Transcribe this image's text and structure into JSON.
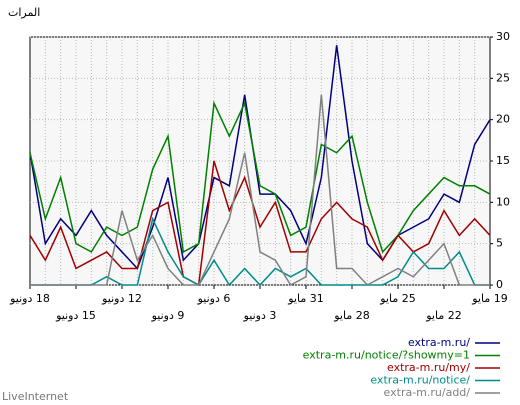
{
  "chart_data": {
    "type": "line",
    "ylabel": "المرات",
    "footer": "LiveInternet",
    "categories": [
      "18 دونيو",
      null,
      null,
      "15 دونيو",
      null,
      null,
      "12 دونيو",
      null,
      null,
      "9 دونيو",
      null,
      null,
      "6 دونيو",
      null,
      null,
      "3 دونيو",
      null,
      null,
      "31 مايو",
      null,
      null,
      "28 مايو",
      null,
      null,
      "25 مايو",
      null,
      null,
      "22 مايو",
      null,
      null,
      "19 مايو"
    ],
    "series": [
      {
        "name": "extra-m.ru/",
        "color": "#000080",
        "values": [
          16,
          5,
          8,
          6,
          9,
          6,
          4,
          2,
          7,
          13,
          3,
          5,
          13,
          12,
          23,
          11,
          11,
          9,
          5,
          13,
          29,
          15,
          5,
          3,
          6,
          7,
          8,
          11,
          10,
          17,
          20
        ]
      },
      {
        "name": "extra-m.ru/notice/?showmy=1",
        "color": "#008000",
        "values": [
          16,
          8,
          13,
          5,
          4,
          7,
          6,
          7,
          14,
          18,
          4,
          5,
          22,
          18,
          22,
          12,
          11,
          6,
          7,
          17,
          16,
          18,
          10,
          4,
          6,
          9,
          11,
          13,
          12,
          12,
          11
        ]
      },
      {
        "name": "extra-m.ru/my/",
        "color": "#a00000",
        "values": [
          6,
          3,
          7,
          2,
          3,
          4,
          2,
          2,
          9,
          10,
          1,
          0,
          15,
          9,
          13,
          7,
          10,
          4,
          4,
          8,
          10,
          8,
          7,
          3,
          6,
          4,
          5,
          9,
          6,
          8,
          6
        ]
      },
      {
        "name": "extra-m.ru/notice/",
        "color": "#008b8b",
        "values": [
          0,
          0,
          0,
          0,
          0,
          1,
          0,
          0,
          8,
          4,
          1,
          0,
          3,
          0,
          2,
          0,
          2,
          1,
          2,
          0,
          0,
          0,
          0,
          0,
          1,
          4,
          2,
          2,
          4,
          0,
          0
        ]
      },
      {
        "name": "extra-m.ru/add/",
        "color": "#808080",
        "values": [
          0,
          0,
          0,
          0,
          0,
          0,
          9,
          3,
          6,
          2,
          0,
          0,
          4,
          8,
          16,
          4,
          3,
          0,
          1,
          23,
          2,
          2,
          0,
          1,
          2,
          1,
          3,
          5,
          0,
          0,
          0
        ]
      }
    ],
    "ylim": [
      0,
      30
    ],
    "yticks": [
      0,
      5,
      10,
      15,
      20,
      25,
      30
    ],
    "grid": true,
    "legend": "bottom-right"
  }
}
